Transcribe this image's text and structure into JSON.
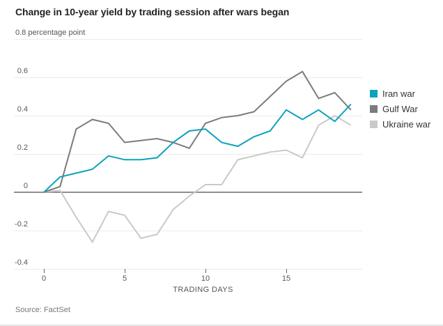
{
  "title": "Change in 10-year yield by trading session after wars began",
  "source": "Source: FactSet",
  "chart_data": {
    "type": "line",
    "title": "Change in 10-year yield by trading session after wars began",
    "xlabel": "TRADING DAYS",
    "ylabel": "percentage point",
    "unit_label": "0.8 percentage point",
    "x": [
      0,
      1,
      2,
      3,
      4,
      5,
      6,
      7,
      8,
      9,
      10,
      11,
      12,
      13,
      14,
      15,
      16,
      17,
      18,
      19
    ],
    "series": [
      {
        "name": "Iran war",
        "color": "#0da2bd",
        "values": [
          0,
          0.08,
          0.1,
          0.12,
          0.19,
          0.17,
          0.17,
          0.18,
          0.26,
          0.32,
          0.33,
          0.26,
          0.24,
          0.29,
          0.32,
          0.43,
          0.38,
          0.43,
          0.37,
          0.46
        ]
      },
      {
        "name": "Gulf War",
        "color": "#7b7b7b",
        "values": [
          0,
          0.03,
          0.33,
          0.38,
          0.36,
          0.26,
          0.27,
          0.28,
          0.26,
          0.23,
          0.36,
          0.39,
          0.4,
          0.42,
          0.5,
          0.58,
          0.63,
          0.49,
          0.52,
          0.43
        ]
      },
      {
        "name": "Ukraine war",
        "color": "#c9c9c9",
        "values": [
          0,
          0.01,
          -0.13,
          -0.26,
          -0.1,
          -0.12,
          -0.24,
          -0.22,
          -0.09,
          -0.02,
          0.04,
          0.04,
          0.17,
          0.19,
          0.21,
          0.22,
          0.18,
          0.35,
          0.4,
          0.35
        ]
      }
    ],
    "ytick_values": [
      0.8,
      0.6,
      0.4,
      0.2,
      0,
      -0.2,
      -0.4
    ],
    "ytick_labels": [
      "0.8 percentage point",
      "0.6",
      "0.4",
      "0.2",
      "0",
      "-0.2",
      "-0.4"
    ],
    "xtick_values": [
      0,
      5,
      10,
      15
    ],
    "xtick_labels": [
      "0",
      "5",
      "10",
      "15"
    ],
    "ylim": [
      -0.4,
      0.8
    ],
    "xlim": [
      0,
      19
    ],
    "grid": true,
    "zero_line": true,
    "legend_position": "right"
  },
  "legend": {
    "items": [
      {
        "label": "Iran war",
        "color": "#0da2bd"
      },
      {
        "label": "Gulf War",
        "color": "#7b7b7b"
      },
      {
        "label": "Ukraine war",
        "color": "#c9c9c9"
      }
    ]
  },
  "colors": {
    "background": "#ffffff",
    "grid": "#ebebeb",
    "zero_line": "#8f8f8f",
    "tick_mark": "#666666",
    "axis_text": "#555555",
    "title_text": "#222222",
    "source_text": "#777777"
  }
}
